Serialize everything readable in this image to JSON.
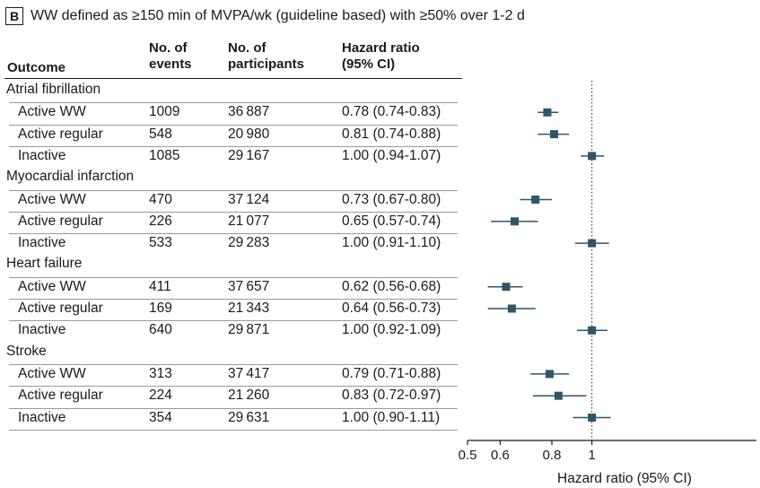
{
  "panel": {
    "letter": "B",
    "title": "WW defined as ≥150 min of MVPA/wk (guideline based) with ≥50% over 1-2 d"
  },
  "table": {
    "headers": {
      "outcome": "Outcome",
      "events_line1": "No. of",
      "events_line2": "events",
      "participants_line1": "No. of",
      "participants_line2": "participants",
      "hr_line1": "Hazard ratio",
      "hr_line2": "(95% CI)"
    },
    "groups": [
      {
        "name": "Atrial fibrillation",
        "rows": [
          {
            "label": "Active WW",
            "events": "1009",
            "participants": "36 887",
            "hr_text": "0.78 (0.74-0.83)"
          },
          {
            "label": "Active regular",
            "events": "548",
            "participants": "20 980",
            "hr_text": "0.81 (0.74-0.88)"
          },
          {
            "label": "Inactive",
            "events": "1085",
            "participants": "29 167",
            "hr_text": "1.00 (0.94-1.07)"
          }
        ]
      },
      {
        "name": "Myocardial infarction",
        "rows": [
          {
            "label": "Active WW",
            "events": "470",
            "participants": "37 124",
            "hr_text": "0.73 (0.67-0.80)"
          },
          {
            "label": "Active regular",
            "events": "226",
            "participants": "21 077",
            "hr_text": "0.65 (0.57-0.74)"
          },
          {
            "label": "Inactive",
            "events": "533",
            "participants": "29 283",
            "hr_text": "1.00 (0.91-1.10)"
          }
        ]
      },
      {
        "name": "Heart failure",
        "rows": [
          {
            "label": "Active WW",
            "events": "411",
            "participants": "37 657",
            "hr_text": "0.62 (0.56-0.68)"
          },
          {
            "label": "Active regular",
            "events": "169",
            "participants": "21 343",
            "hr_text": "0.64 (0.56-0.73)"
          },
          {
            "label": "Inactive",
            "events": "640",
            "participants": "29 871",
            "hr_text": "1.00 (0.92-1.09)"
          }
        ]
      },
      {
        "name": "Stroke",
        "rows": [
          {
            "label": "Active WW",
            "events": "313",
            "participants": "37 417",
            "hr_text": "0.79 (0.71-0.88)"
          },
          {
            "label": "Active regular",
            "events": "224",
            "participants": "21 260",
            "hr_text": "0.83 (0.72-0.97)"
          },
          {
            "label": "Inactive",
            "events": "354",
            "participants": "29 631",
            "hr_text": "1.00 (0.90-1.11)"
          }
        ]
      }
    ]
  },
  "chart_data": {
    "type": "forest",
    "xlabel": "Hazard ratio (95% CI)",
    "x_scale": "log",
    "xlim": [
      0.5,
      2.5
    ],
    "ticks": [
      0.5,
      0.6,
      0.8,
      1
    ],
    "tick_labels": [
      "0.5",
      "0.6",
      "0.8",
      "1"
    ],
    "reference_line": 1,
    "marker_color": "#2f5568",
    "points": [
      {
        "group": "Atrial fibrillation",
        "label": "Active WW",
        "hr": 0.78,
        "lo": 0.74,
        "hi": 0.83
      },
      {
        "group": "Atrial fibrillation",
        "label": "Active regular",
        "hr": 0.81,
        "lo": 0.74,
        "hi": 0.88
      },
      {
        "group": "Atrial fibrillation",
        "label": "Inactive",
        "hr": 1.0,
        "lo": 0.94,
        "hi": 1.07
      },
      {
        "group": "Myocardial infarction",
        "label": "Active WW",
        "hr": 0.73,
        "lo": 0.67,
        "hi": 0.8
      },
      {
        "group": "Myocardial infarction",
        "label": "Active regular",
        "hr": 0.65,
        "lo": 0.57,
        "hi": 0.74
      },
      {
        "group": "Myocardial infarction",
        "label": "Inactive",
        "hr": 1.0,
        "lo": 0.91,
        "hi": 1.1
      },
      {
        "group": "Heart failure",
        "label": "Active WW",
        "hr": 0.62,
        "lo": 0.56,
        "hi": 0.68
      },
      {
        "group": "Heart failure",
        "label": "Active regular",
        "hr": 0.64,
        "lo": 0.56,
        "hi": 0.73
      },
      {
        "group": "Heart failure",
        "label": "Inactive",
        "hr": 1.0,
        "lo": 0.92,
        "hi": 1.09
      },
      {
        "group": "Stroke",
        "label": "Active WW",
        "hr": 0.79,
        "lo": 0.71,
        "hi": 0.88
      },
      {
        "group": "Stroke",
        "label": "Active regular",
        "hr": 0.83,
        "lo": 0.72,
        "hi": 0.97
      },
      {
        "group": "Stroke",
        "label": "Inactive",
        "hr": 1.0,
        "lo": 0.9,
        "hi": 1.11
      }
    ]
  }
}
